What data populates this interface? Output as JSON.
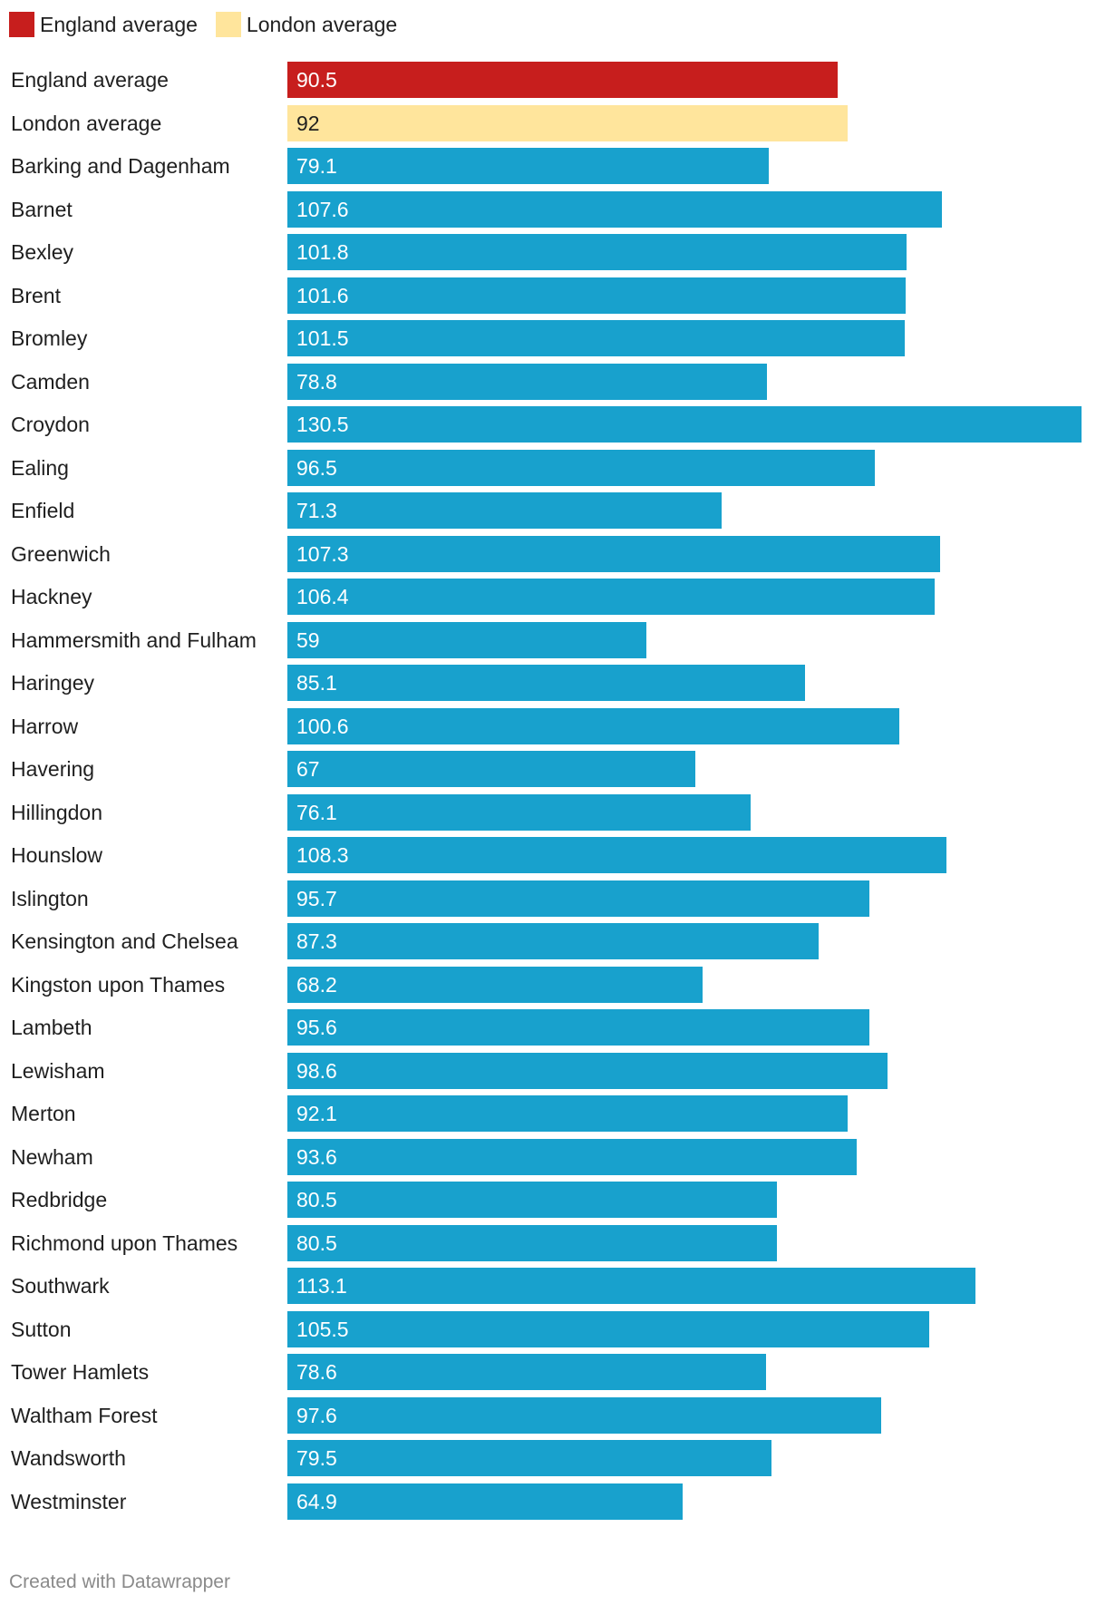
{
  "chart_data": {
    "type": "bar",
    "orientation": "horizontal",
    "title": "",
    "xlabel": "",
    "ylabel": "",
    "xlim": [
      0,
      130.5
    ],
    "legend": [
      {
        "label": "England average",
        "color": "#c71e1d"
      },
      {
        "label": "London average",
        "color": "#ffe59c"
      }
    ],
    "categories": [
      "England average",
      "London average",
      "Barking and Dagenham",
      "Barnet",
      "Bexley",
      "Brent",
      "Bromley",
      "Camden",
      "Croydon",
      "Ealing",
      "Enfield",
      "Greenwich",
      "Hackney",
      "Hammersmith and Fulham",
      "Haringey",
      "Harrow",
      "Havering",
      "Hillingdon",
      "Hounslow",
      "Islington",
      "Kensington and Chelsea",
      "Kingston upon Thames",
      "Lambeth",
      "Lewisham",
      "Merton",
      "Newham",
      "Redbridge",
      "Richmond upon Thames",
      "Southwark",
      "Sutton",
      "Tower Hamlets",
      "Waltham Forest",
      "Wandsworth",
      "Westminster"
    ],
    "values": [
      90.5,
      92,
      79.1,
      107.6,
      101.8,
      101.6,
      101.5,
      78.8,
      130.5,
      96.5,
      71.3,
      107.3,
      106.4,
      59,
      85.1,
      100.6,
      67,
      76.1,
      108.3,
      95.7,
      87.3,
      68.2,
      95.6,
      98.6,
      92.1,
      93.6,
      80.5,
      80.5,
      113.1,
      105.5,
      78.6,
      97.6,
      79.5,
      64.9
    ],
    "value_labels": [
      "90.5",
      "92",
      "79.1",
      "107.6",
      "101.8",
      "101.6",
      "101.5",
      "78.8",
      "130.5",
      "96.5",
      "71.3",
      "107.3",
      "106.4",
      "59",
      "85.1",
      "100.6",
      "67",
      "76.1",
      "108.3",
      "95.7",
      "87.3",
      "68.2",
      "95.6",
      "98.6",
      "92.1",
      "93.6",
      "80.5",
      "80.5",
      "113.1",
      "105.5",
      "78.6",
      "97.6",
      "79.5",
      "64.9"
    ],
    "bar_colors": [
      "#c71e1d",
      "#ffe59c",
      "#18a1cd",
      "#18a1cd",
      "#18a1cd",
      "#18a1cd",
      "#18a1cd",
      "#18a1cd",
      "#18a1cd",
      "#18a1cd",
      "#18a1cd",
      "#18a1cd",
      "#18a1cd",
      "#18a1cd",
      "#18a1cd",
      "#18a1cd",
      "#18a1cd",
      "#18a1cd",
      "#18a1cd",
      "#18a1cd",
      "#18a1cd",
      "#18a1cd",
      "#18a1cd",
      "#18a1cd",
      "#18a1cd",
      "#18a1cd",
      "#18a1cd",
      "#18a1cd",
      "#18a1cd",
      "#18a1cd",
      "#18a1cd",
      "#18a1cd",
      "#18a1cd",
      "#18a1cd"
    ],
    "label_colors": [
      "#ffffff",
      "#1f1f1f",
      "#ffffff",
      "#ffffff",
      "#ffffff",
      "#ffffff",
      "#ffffff",
      "#ffffff",
      "#ffffff",
      "#ffffff",
      "#ffffff",
      "#ffffff",
      "#ffffff",
      "#ffffff",
      "#ffffff",
      "#ffffff",
      "#ffffff",
      "#ffffff",
      "#ffffff",
      "#ffffff",
      "#ffffff",
      "#ffffff",
      "#ffffff",
      "#ffffff",
      "#ffffff",
      "#ffffff",
      "#ffffff",
      "#ffffff",
      "#ffffff",
      "#ffffff",
      "#ffffff",
      "#ffffff",
      "#ffffff",
      "#ffffff"
    ]
  },
  "footer": {
    "credit": "Created with Datawrapper"
  }
}
